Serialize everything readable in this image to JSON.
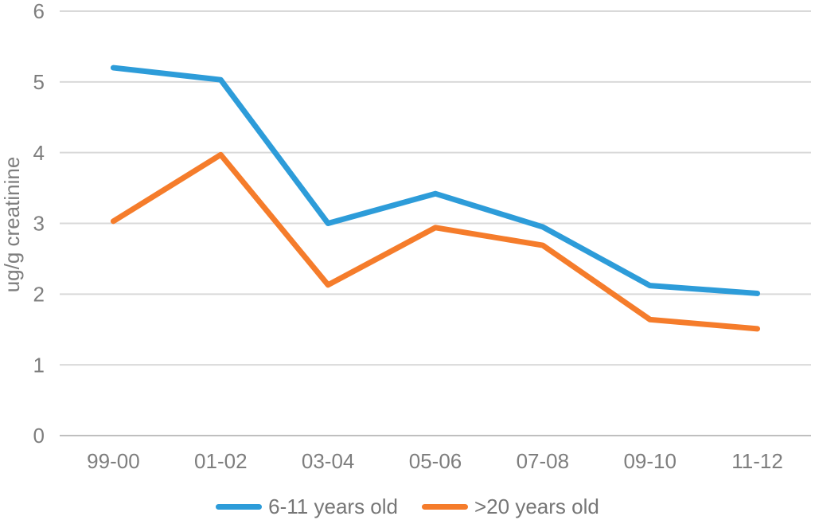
{
  "chart_data": {
    "type": "line",
    "title": "",
    "ylabel": "ug/g creatinine",
    "xlabel": "",
    "categories": [
      "99-00",
      "01-02",
      "03-04",
      "05-06",
      "07-08",
      "09-10",
      "11-12"
    ],
    "series": [
      {
        "name": "6-11 years old",
        "color": "#2d9cd9",
        "values": [
          5.2,
          5.03,
          3.0,
          3.42,
          2.95,
          2.12,
          2.01
        ]
      },
      {
        "name": ">20 years old",
        "color": "#f57c2b",
        "values": [
          3.03,
          3.97,
          2.13,
          2.94,
          2.69,
          1.64,
          1.51
        ]
      }
    ],
    "ylim": [
      0,
      6
    ],
    "ytick_step": 1,
    "grid": true,
    "legend_position": "bottom",
    "colors": {
      "grid": "#d9d9d9",
      "axis": "#bfbfbf",
      "tick_label": "#7e7e7e",
      "legend_text": "#767676",
      "background": "#ffffff"
    }
  }
}
